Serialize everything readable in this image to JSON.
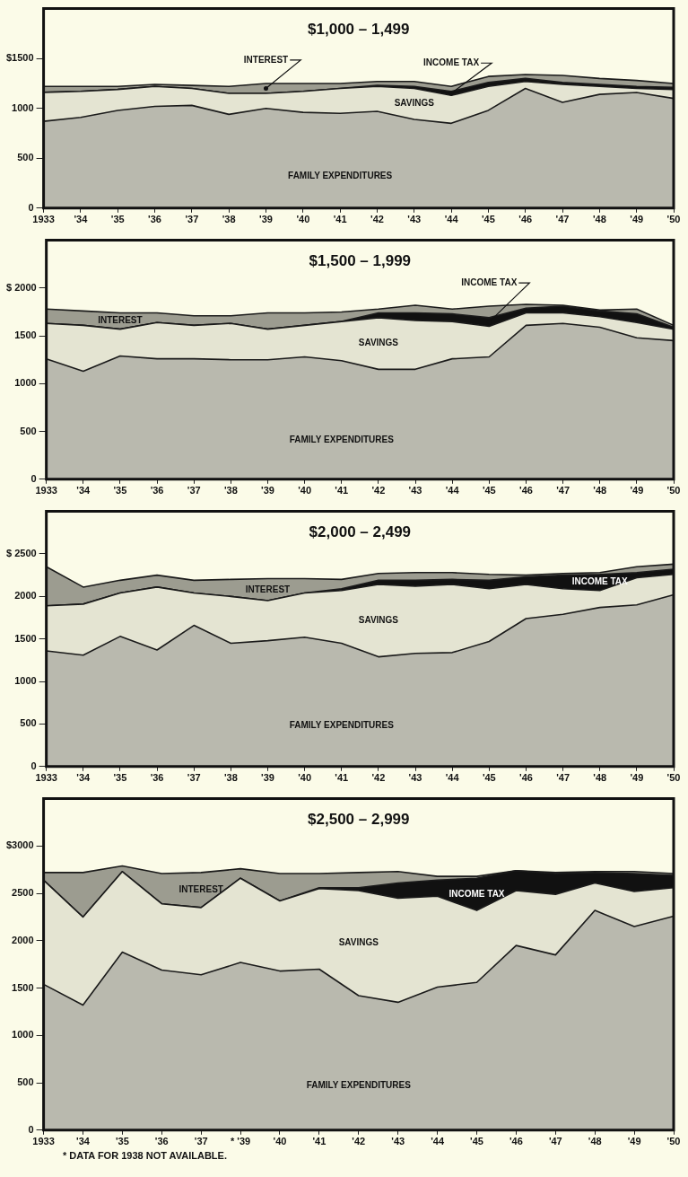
{
  "chart_data": [
    {
      "type": "area",
      "title": "$1,000 – 1,499",
      "stacked": true,
      "grid": false,
      "categories": [
        "1933",
        "'34",
        "'35",
        "'36",
        "'37",
        "'38",
        "'39",
        "'40",
        "'41",
        "'42",
        "'43",
        "'44",
        "'45",
        "'46",
        "'47",
        "'48",
        "'49",
        "'50"
      ],
      "ylim": [
        0,
        2000
      ],
      "yticks": [
        0,
        500,
        1000,
        {
          "value": 1500,
          "label": "$1500"
        }
      ],
      "series": [
        {
          "name": "FAMILY EXPENDITURES",
          "color": "#b9b9ae",
          "values": [
            870,
            910,
            980,
            1020,
            1030,
            940,
            1000,
            960,
            950,
            970,
            890,
            850,
            980,
            1200,
            1060,
            1140,
            1160,
            1100
          ]
        },
        {
          "name": "SAVINGS",
          "color": "#e4e4d2",
          "values": [
            290,
            260,
            210,
            200,
            170,
            210,
            150,
            210,
            250,
            250,
            310,
            280,
            240,
            70,
            180,
            80,
            40,
            90
          ]
        },
        {
          "name": "INCOME TAX",
          "color": "#111111",
          "values": [
            0,
            0,
            0,
            0,
            0,
            0,
            0,
            0,
            0,
            10,
            20,
            40,
            40,
            30,
            20,
            20,
            20,
            20
          ]
        },
        {
          "name": "INTEREST",
          "color": "#9c9c90",
          "values": [
            60,
            50,
            30,
            20,
            30,
            70,
            100,
            80,
            50,
            40,
            50,
            50,
            60,
            40,
            70,
            60,
            60,
            40
          ]
        }
      ]
    },
    {
      "type": "area",
      "title": "$1,500 – 1,999",
      "stacked": true,
      "grid": false,
      "categories": [
        "1933",
        "'34",
        "'35",
        "'36",
        "'37",
        "'38",
        "'39",
        "'40",
        "'41",
        "'42",
        "'43",
        "'44",
        "'45",
        "'46",
        "'47",
        "'48",
        "'49",
        "'50"
      ],
      "ylim": [
        0,
        2500
      ],
      "yticks": [
        0,
        500,
        1000,
        1500,
        {
          "value": 2000,
          "label": "$ 2000"
        }
      ],
      "series": [
        {
          "name": "FAMILY EXPENDITURES",
          "color": "#b9b9ae",
          "values": [
            1260,
            1130,
            1290,
            1260,
            1260,
            1250,
            1250,
            1280,
            1240,
            1150,
            1150,
            1260,
            1280,
            1610,
            1630,
            1590,
            1480,
            1450
          ]
        },
        {
          "name": "SAVINGS",
          "color": "#e4e4d2",
          "values": [
            370,
            480,
            280,
            380,
            350,
            380,
            320,
            330,
            410,
            540,
            510,
            390,
            320,
            130,
            110,
            110,
            160,
            120
          ]
        },
        {
          "name": "INCOME TAX",
          "color": "#111111",
          "values": [
            0,
            0,
            0,
            0,
            0,
            0,
            0,
            0,
            0,
            50,
            80,
            80,
            90,
            50,
            70,
            60,
            90,
            20
          ]
        },
        {
          "name": "INTEREST",
          "color": "#9c9c90",
          "values": [
            150,
            150,
            170,
            100,
            100,
            80,
            170,
            130,
            100,
            40,
            80,
            50,
            120,
            40,
            10,
            10,
            50,
            20
          ]
        }
      ]
    },
    {
      "type": "area",
      "title": "$2,000 – 2,499",
      "stacked": true,
      "grid": false,
      "categories": [
        "1933",
        "'34",
        "'35",
        "'36",
        "'37",
        "'38",
        "'39",
        "'40",
        "'41",
        "'42",
        "'43",
        "'44",
        "'45",
        "'46",
        "'47",
        "'48",
        "'49",
        "'50"
      ],
      "ylim": [
        0,
        3000
      ],
      "yticks": [
        0,
        500,
        1000,
        1500,
        2000,
        {
          "value": 2500,
          "label": "$ 2500"
        }
      ],
      "series": [
        {
          "name": "FAMILY EXPENDITURES",
          "color": "#b9b9ae",
          "values": [
            1360,
            1310,
            1530,
            1370,
            1660,
            1450,
            1480,
            1520,
            1450,
            1290,
            1330,
            1340,
            1470,
            1740,
            1790,
            1870,
            1900,
            2020
          ]
        },
        {
          "name": "SAVINGS",
          "color": "#e4e4d2",
          "values": [
            530,
            600,
            510,
            740,
            380,
            550,
            470,
            520,
            620,
            850,
            790,
            800,
            620,
            400,
            300,
            200,
            320,
            240
          ]
        },
        {
          "name": "INCOME TAX",
          "color": "#111111",
          "values": [
            0,
            0,
            0,
            0,
            0,
            0,
            0,
            0,
            20,
            50,
            70,
            60,
            100,
            90,
            160,
            190,
            60,
            60
          ]
        },
        {
          "name": "INTEREST",
          "color": "#9c9c90",
          "values": [
            460,
            200,
            150,
            140,
            150,
            200,
            260,
            170,
            110,
            80,
            90,
            80,
            70,
            20,
            20,
            20,
            70,
            60
          ]
        }
      ]
    },
    {
      "type": "area",
      "title": "$2,500 – 2,999",
      "stacked": true,
      "grid": false,
      "categories": [
        "1933",
        "'34",
        "'35",
        "'36",
        "'37",
        "* '39",
        "'40",
        "'41",
        "'42",
        "'43",
        "'44",
        "'45",
        "'46",
        "'47",
        "'48",
        "'49",
        "'50"
      ],
      "ylim": [
        0,
        3500
      ],
      "yticks": [
        0,
        500,
        1000,
        1500,
        2000,
        2500,
        {
          "value": 3000,
          "label": "$3000"
        }
      ],
      "annotations": [
        "* DATA FOR 1938 NOT AVAILABLE."
      ],
      "series": [
        {
          "name": "FAMILY EXPENDITURES",
          "color": "#b9b9ae",
          "values": [
            1540,
            1320,
            1880,
            1690,
            1640,
            1770,
            1680,
            1700,
            1420,
            1350,
            1510,
            1560,
            1950,
            1850,
            2320,
            2150,
            2260
          ]
        },
        {
          "name": "SAVINGS",
          "color": "#e4e4d2",
          "values": [
            1100,
            930,
            850,
            700,
            710,
            890,
            740,
            850,
            1110,
            1100,
            960,
            760,
            580,
            640,
            290,
            370,
            300
          ]
        },
        {
          "name": "INCOME TAX",
          "color": "#111111",
          "values": [
            0,
            0,
            0,
            0,
            0,
            0,
            0,
            10,
            30,
            160,
            170,
            340,
            210,
            220,
            110,
            190,
            130
          ]
        },
        {
          "name": "INTEREST",
          "color": "#9c9c90",
          "values": [
            80,
            470,
            60,
            320,
            370,
            100,
            290,
            150,
            160,
            120,
            40,
            20,
            0,
            10,
            10,
            20,
            20
          ]
        }
      ]
    }
  ]
}
